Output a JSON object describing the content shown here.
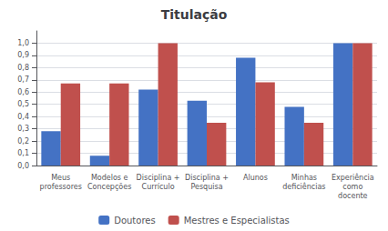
{
  "chart_data": {
    "type": "bar",
    "title": "Titulação",
    "categories": [
      "Meus\nprofessores",
      "Modelos e\nConcepções",
      "Disciplina +\nCurrículo",
      "Disciplina +\nPesquisa",
      "Alunos",
      "Minhas\ndeficiências",
      "Experiência\ncomo\ndocente"
    ],
    "series": [
      {
        "name": "Doutores",
        "color": "#4472C4",
        "values": [
          0.28,
          0.08,
          0.62,
          0.53,
          0.88,
          0.48,
          1.0
        ]
      },
      {
        "name": "Mestres e Especialistas",
        "color": "#C0504D",
        "values": [
          0.67,
          0.67,
          1.0,
          0.35,
          0.68,
          0.35,
          1.0
        ]
      }
    ],
    "ylim": [
      0,
      1.1
    ],
    "yticks": [
      {
        "value": 0.0,
        "label": "0,0"
      },
      {
        "value": 0.1,
        "label": "0,1"
      },
      {
        "value": 0.2,
        "label": "0,2"
      },
      {
        "value": 0.3,
        "label": "0,3"
      },
      {
        "value": 0.4,
        "label": "0,4"
      },
      {
        "value": 0.5,
        "label": "0,5"
      },
      {
        "value": 0.6,
        "label": "0,6"
      },
      {
        "value": 0.7,
        "label": "0,7"
      },
      {
        "value": 0.8,
        "label": "0,8"
      },
      {
        "value": 0.9,
        "label": "0,9"
      },
      {
        "value": 1.0,
        "label": "1,0"
      }
    ],
    "grid": true,
    "legend": "bottom"
  }
}
